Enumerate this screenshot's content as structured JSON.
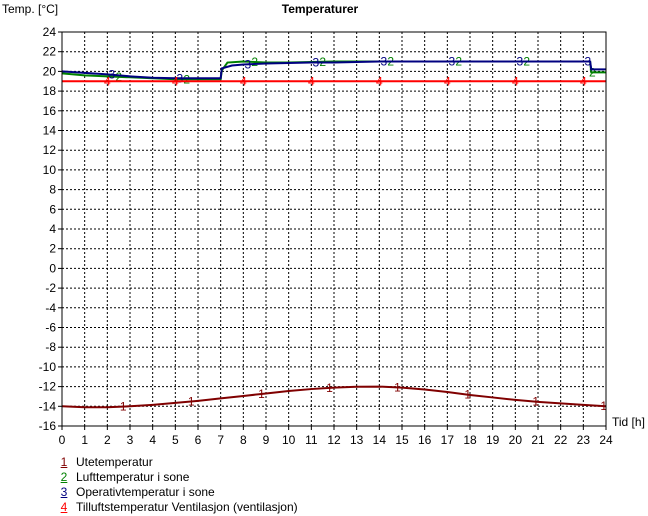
{
  "chart_data": {
    "type": "line",
    "title": "Temperaturer",
    "ylabel": "Temp. [°C]",
    "xlabel": "Tid [h]",
    "xlim": [
      0,
      24
    ],
    "ylim": [
      -16,
      24
    ],
    "x_ticks": [
      0,
      1,
      2,
      3,
      4,
      5,
      6,
      7,
      8,
      9,
      10,
      11,
      12,
      13,
      14,
      15,
      16,
      17,
      18,
      19,
      20,
      21,
      22,
      23,
      24
    ],
    "y_ticks": [
      -16,
      -14,
      -12,
      -10,
      -8,
      -6,
      -4,
      -2,
      0,
      2,
      4,
      6,
      8,
      10,
      12,
      14,
      16,
      18,
      20,
      22,
      24
    ],
    "grid": true,
    "legend_position": "bottom-left",
    "series": [
      {
        "name": "Utetemperatur",
        "number": "1",
        "color": "#800000",
        "x": [
          0,
          1,
          2,
          3,
          4,
          5,
          6,
          7,
          8,
          9,
          10,
          11,
          12,
          13,
          14,
          15,
          16,
          17,
          18,
          19,
          20,
          21,
          22,
          23,
          24
        ],
        "values": [
          -14,
          -14.1,
          -14.1,
          -14,
          -13.85,
          -13.65,
          -13.45,
          -13.2,
          -12.95,
          -12.7,
          -12.45,
          -12.25,
          -12.1,
          -12.02,
          -12,
          -12.1,
          -12.3,
          -12.55,
          -12.85,
          -13.1,
          -13.35,
          -13.55,
          -13.7,
          -13.85,
          -14
        ],
        "markers_x": [
          2.7,
          5.7,
          8.8,
          11.8,
          14.8,
          17.9,
          20.9,
          23.9
        ]
      },
      {
        "name": "Lufttemperatur i sone",
        "number": "2",
        "color": "#008000",
        "x": [
          0,
          1,
          2,
          3,
          4,
          5,
          6,
          7,
          7.05,
          7.3,
          8,
          9,
          10,
          11,
          12,
          13,
          14,
          15,
          16,
          17,
          18,
          19,
          20,
          21,
          22,
          23,
          23.3,
          23.35,
          24
        ],
        "values": [
          19.8,
          19.6,
          19.5,
          19.4,
          19.3,
          19.2,
          19.2,
          19.2,
          20.1,
          20.9,
          21,
          20.9,
          20.9,
          20.95,
          21,
          21,
          21,
          21,
          21,
          21,
          21,
          21,
          21,
          21,
          21,
          21,
          21,
          19.9,
          19.9
        ],
        "markers_x": [
          2.5,
          5.5,
          8.5,
          11.5,
          14.5,
          17.5,
          20.5,
          23.4
        ]
      },
      {
        "name": "Operativtemperatur i sone",
        "number": "3",
        "color": "#000080",
        "x": [
          0,
          1,
          2,
          3,
          4,
          5,
          6,
          7,
          7.05,
          7.5,
          8,
          9,
          10,
          11,
          12,
          13,
          14,
          15,
          16,
          17,
          18,
          19,
          20,
          21,
          22,
          23,
          23.3,
          23.35,
          24
        ],
        "values": [
          20,
          19.85,
          19.7,
          19.5,
          19.35,
          19.3,
          19.3,
          19.3,
          20.3,
          20.6,
          20.7,
          20.8,
          20.85,
          20.9,
          20.9,
          20.95,
          21,
          21,
          21,
          21,
          21,
          21,
          21,
          21,
          21,
          21,
          21,
          20.2,
          20.2
        ],
        "markers_x": [
          2.2,
          5.2,
          8.2,
          11.2,
          14.2,
          17.2,
          20.2,
          23.2
        ]
      },
      {
        "name": "Tilluftstemperatur Ventilasjon (ventilasjon)",
        "number": "4",
        "color": "#ff0000",
        "x": [
          0,
          24
        ],
        "values": [
          19,
          19
        ],
        "markers_x": [
          2,
          5,
          8,
          11,
          14,
          17,
          20,
          23
        ]
      }
    ]
  }
}
